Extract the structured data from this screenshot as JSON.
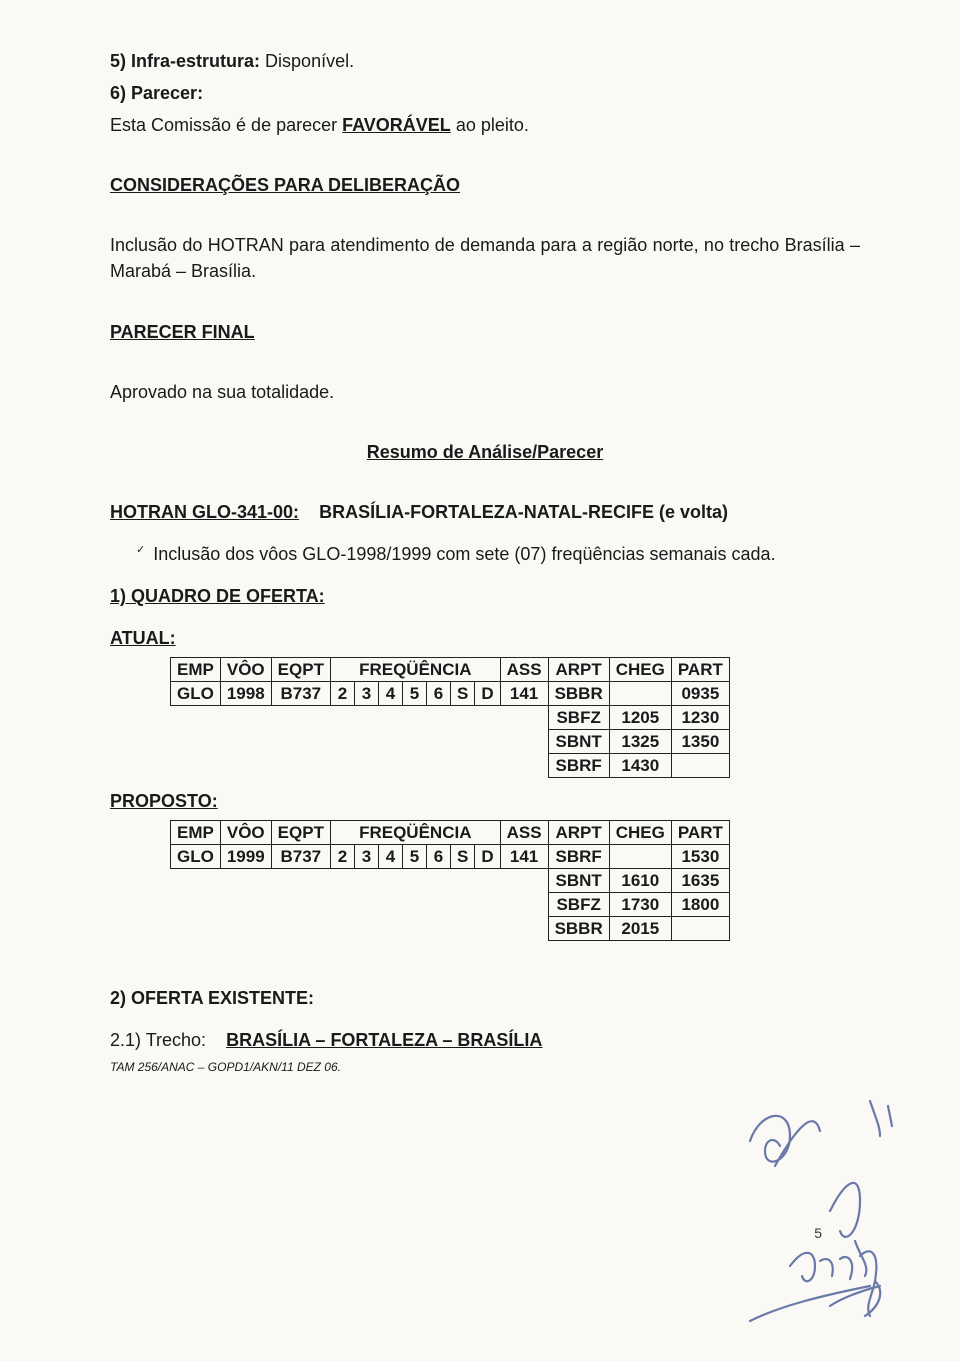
{
  "sections": {
    "item5": {
      "label": "5) Infra-estrutura:",
      "value": "Disponível."
    },
    "item6": {
      "label": "6) Parecer:"
    },
    "parecer_line_prefix": "Esta Comissão é de parecer ",
    "parecer_word": "FAVORÁVEL",
    "parecer_line_suffix": " ao pleito.",
    "consideracoes_title": "CONSIDERAÇÕES PARA DELIBERAÇÃO",
    "consideracoes_body": "Inclusão do HOTRAN para atendimento de demanda para a região norte, no trecho Brasília – Marabá – Brasília.",
    "parecer_final_title": "PARECER FINAL",
    "parecer_final_body": "Aprovado na sua totalidade.",
    "resumo_title": "Resumo de Análise/Parecer",
    "hotran_label": "HOTRAN GLO-341-00:",
    "hotran_value": "BRASÍLIA-FORTALEZA-NATAL-RECIFE (e volta)",
    "hotran_sub": "Inclusão dos vôos GLO-1998/1999 com sete (07) freqüências semanais cada.",
    "quadro_title": "1) QUADRO DE OFERTA:",
    "atual_label": "ATUAL:",
    "proposto_label": "PROPOSTO:",
    "oferta_existente_title": "2) OFERTA EXISTENTE:",
    "trecho_label": "2.1) Trecho:",
    "trecho_value": "BRASÍLIA – FORTALEZA – BRASÍLIA",
    "footer_ref": "TAM 256/ANAC – GOPD1/AKN/11 DEZ 06.",
    "page_number": "5"
  },
  "table_headers": {
    "emp": "EMP",
    "voo": "VÔO",
    "eqpt": "EQPT",
    "freq": "FREQÜÊNCIA",
    "ass": "ASS",
    "arpt": "ARPT",
    "cheg": "CHEG",
    "part": "PART"
  },
  "atual_table": {
    "emp": "GLO",
    "voo": "1998",
    "eqpt": "B737",
    "freq": [
      "2",
      "3",
      "4",
      "5",
      "6",
      "S",
      "D"
    ],
    "ass": "141",
    "rows": [
      {
        "arpt": "SBBR",
        "cheg": "",
        "part": "0935"
      },
      {
        "arpt": "SBFZ",
        "cheg": "1205",
        "part": "1230"
      },
      {
        "arpt": "SBNT",
        "cheg": "1325",
        "part": "1350"
      },
      {
        "arpt": "SBRF",
        "cheg": "1430",
        "part": ""
      }
    ]
  },
  "proposto_table": {
    "emp": "GLO",
    "voo": "1999",
    "eqpt": "B737",
    "freq": [
      "2",
      "3",
      "4",
      "5",
      "6",
      "S",
      "D"
    ],
    "ass": "141",
    "rows": [
      {
        "arpt": "SBRF",
        "cheg": "",
        "part": "1530"
      },
      {
        "arpt": "SBNT",
        "cheg": "1610",
        "part": "1635"
      },
      {
        "arpt": "SBFZ",
        "cheg": "1730",
        "part": "1800"
      },
      {
        "arpt": "SBBR",
        "cheg": "2015",
        "part": ""
      }
    ]
  },
  "style": {
    "page_bg": "#faf9f6",
    "text_color": "#1a1a1a",
    "border_color": "#222222",
    "sig_color": "#6a7aa8",
    "col_widths": {
      "emp": 46,
      "voo": 50,
      "eqpt": 52,
      "freq_cell": 24,
      "ass": 42,
      "arpt": 58,
      "cheg": 58,
      "part": 58
    }
  }
}
